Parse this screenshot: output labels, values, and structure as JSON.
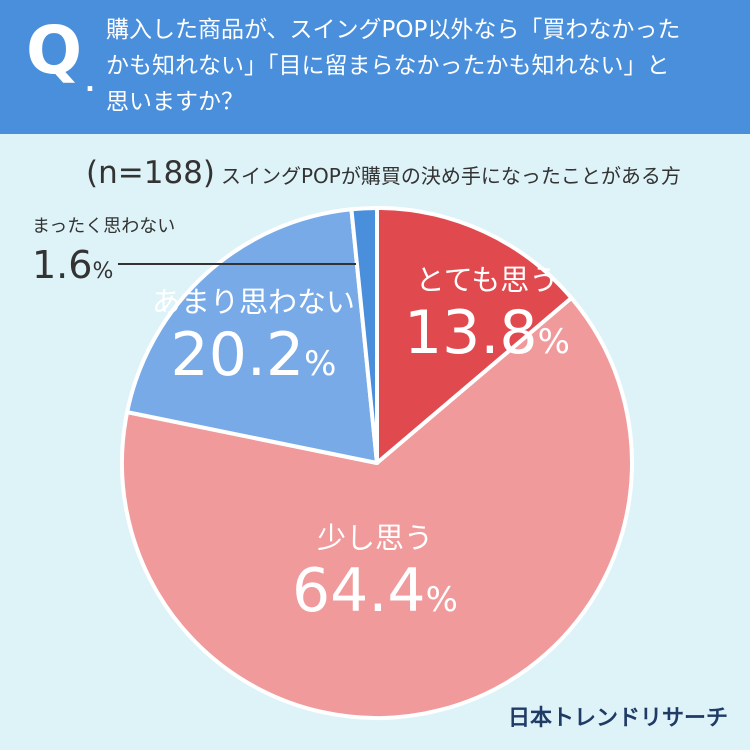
{
  "question": {
    "mark": "Q",
    "mark_dot": ".",
    "line1": "購入した商品が、スイングPOP以外なら「買わなかった",
    "line2": "かも知れない」「目に留まらなかったかも知れない」と",
    "line3": "思いますか？"
  },
  "subtitle": {
    "n": "(n=188)",
    "description": "スイングPOPが購買の決め手になったことがある方"
  },
  "brand": "日本トレンドリサーチ",
  "colors": {
    "header": "#4a8fdc",
    "background": "#def3f8",
    "very_much": "#e04a4f",
    "slightly": "#f09a9b",
    "not_much": "#78aae8",
    "not_at_all": "#4a8fdc"
  },
  "chart_data": {
    "type": "pie",
    "start": "top",
    "direction": "clockwise",
    "slices": [
      {
        "label": "とても思う",
        "value": 13.8,
        "display": "13.8",
        "unit": "%",
        "color": "#e04a4f"
      },
      {
        "label": "少し思う",
        "value": 64.4,
        "display": "64.4",
        "unit": "%",
        "color": "#f09a9b"
      },
      {
        "label": "あまり思わない",
        "value": 20.2,
        "display": "20.2",
        "unit": "%",
        "color": "#78aae8"
      },
      {
        "label": "まったく思わない",
        "value": 1.6,
        "display": "1.6",
        "unit": "%",
        "color": "#4a8fdc"
      }
    ]
  }
}
